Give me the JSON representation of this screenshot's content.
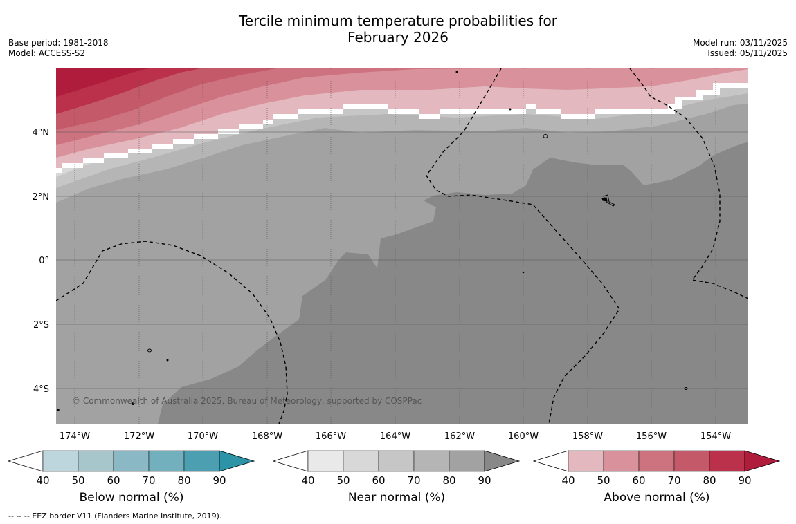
{
  "title_line1": "Tercile minimum temperature probabilities for",
  "title_line2": "February 2026",
  "base_period": "Base period: 1981-2018",
  "model": "Model: ACCESS-S2",
  "model_run": "Model run: 03/11/2025",
  "issued": "Issued: 05/11/2025",
  "copyright": "© Commonwealth of Australia 2025, Bureau of Meteorology, supported by COSPPac",
  "footnote": "--  --  -- EEZ border V11 (Flanders Marine Institute, 2019).",
  "lon_labels": [
    "174°W",
    "172°W",
    "170°W",
    "168°W",
    "166°W",
    "164°W",
    "162°W",
    "160°W",
    "158°W",
    "156°W",
    "154°W"
  ],
  "lat_labels": [
    "4°N",
    "2°N",
    "0°",
    "2°S",
    "4°S"
  ],
  "colors": {
    "below": [
      "#bdd5dc",
      "#a6c6cc",
      "#8bb8c5",
      "#72b0bd",
      "#4b9fb0",
      "#2d93a6"
    ],
    "near": [
      "#e9e9e9",
      "#d8d8d8",
      "#c6c6c6",
      "#b5b5b5",
      "#a2a2a2",
      "#888888"
    ],
    "above": [
      "#e3b8be",
      "#d9919b",
      "#cd737f",
      "#c45a69",
      "#bb304a",
      "#af1c3c"
    ]
  },
  "colorbars": [
    {
      "name": "Below normal (%)",
      "ticks": [
        "40",
        "50",
        "60",
        "70",
        "80",
        "90"
      ]
    },
    {
      "name": "Near normal (%)",
      "ticks": [
        "40",
        "50",
        "60",
        "70",
        "80",
        "90"
      ]
    },
    {
      "name": "Above normal (%)",
      "ticks": [
        "40",
        "50",
        "60",
        "70",
        "80",
        "90"
      ]
    }
  ]
}
